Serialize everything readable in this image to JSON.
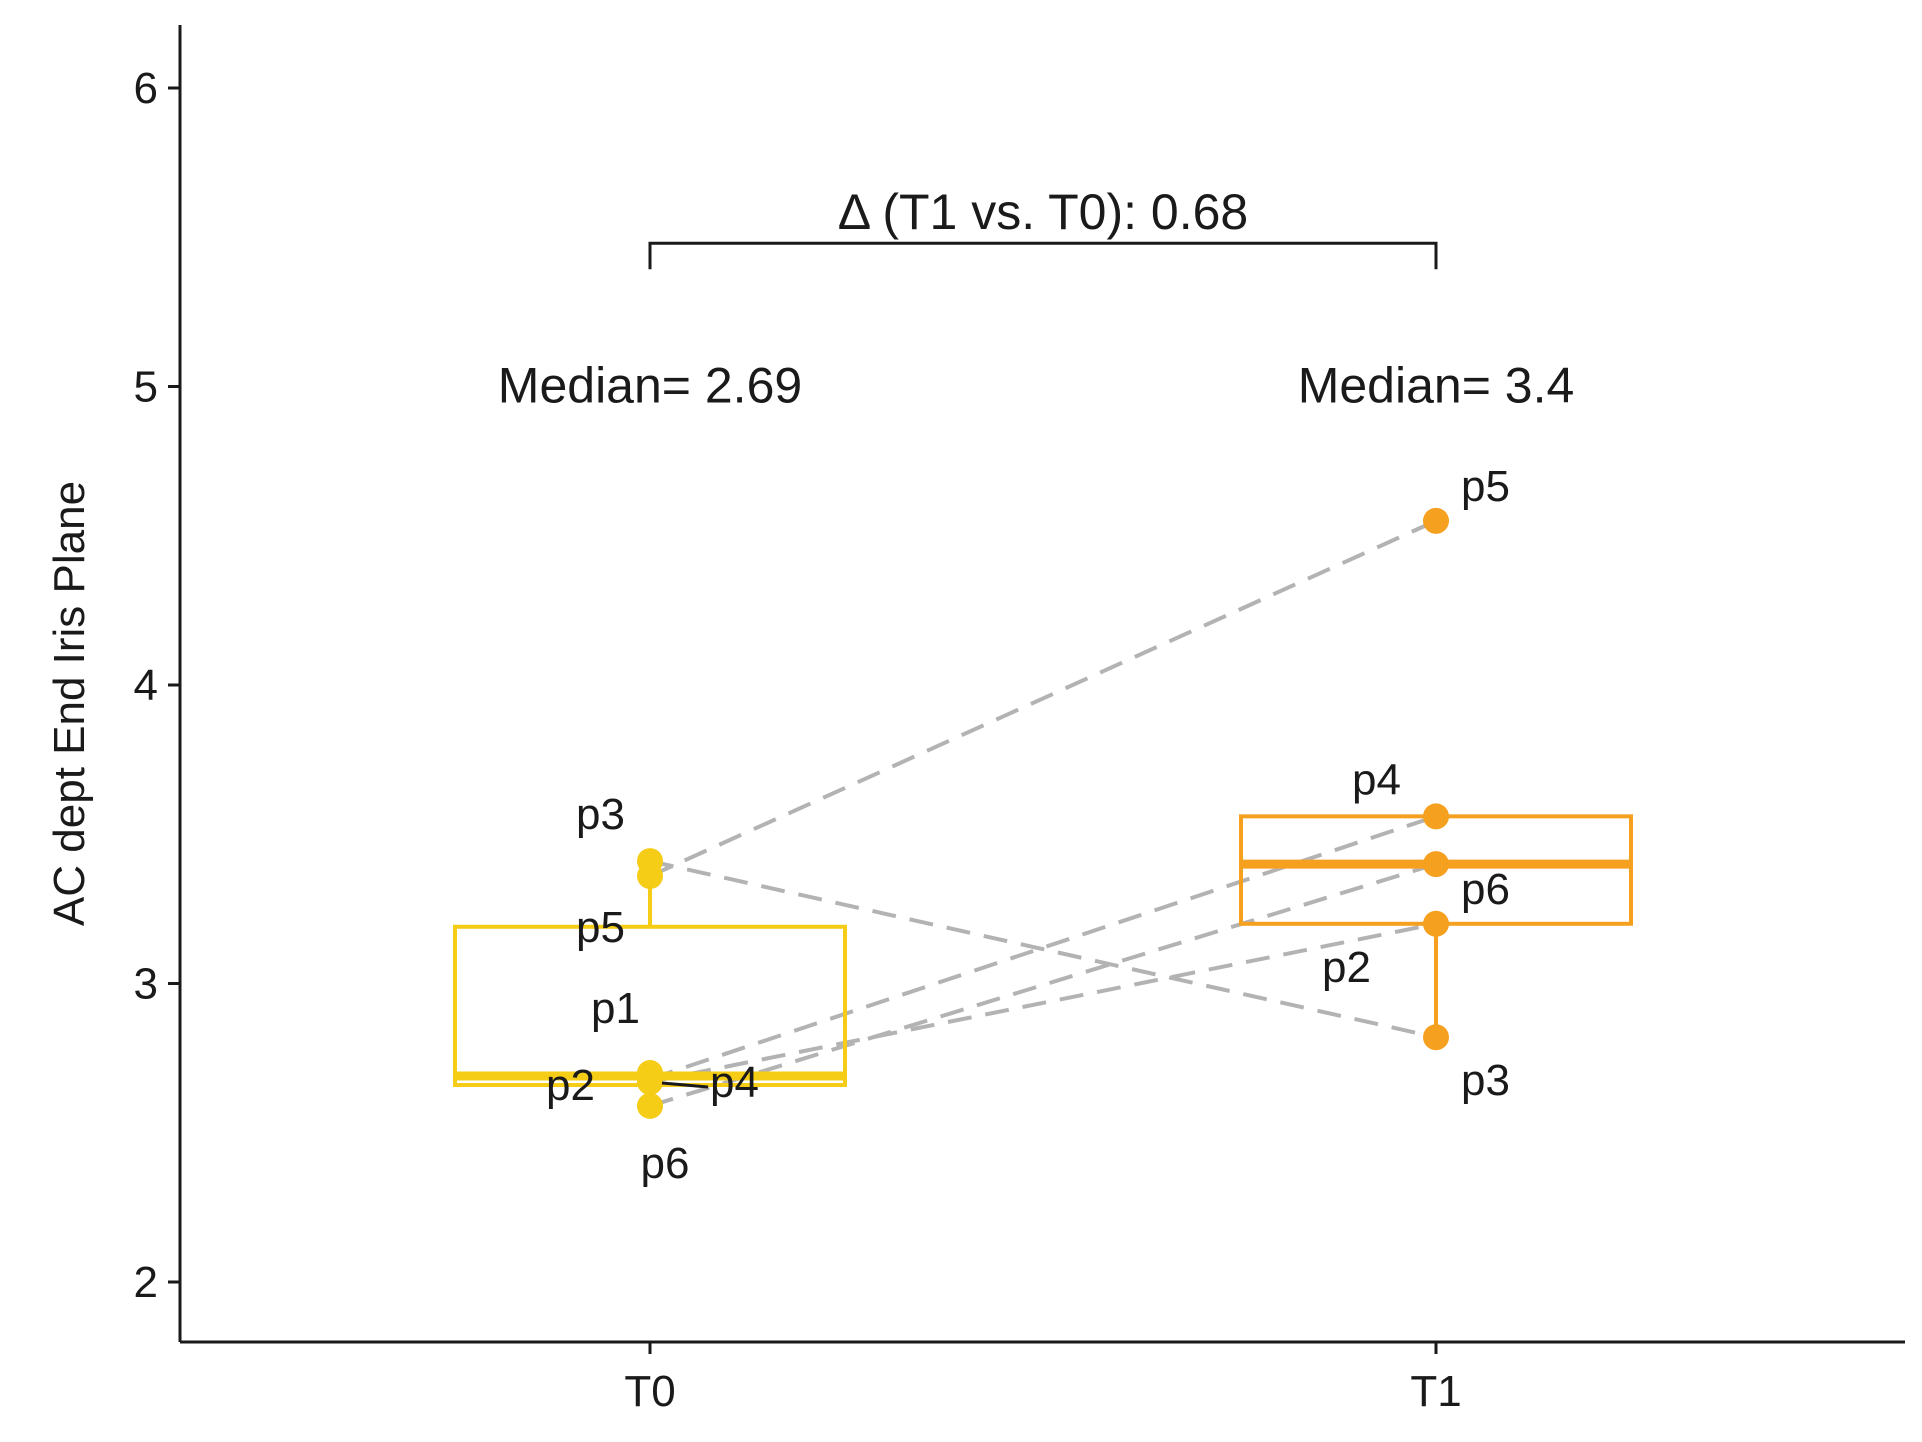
{
  "chart_data": {
    "type": "box",
    "ylabel": "AC dept End Iris Plane",
    "ylim": [
      1.9,
      6.2
    ],
    "yticks": [
      2,
      3,
      4,
      5,
      6
    ],
    "categories": [
      "T0",
      "T1"
    ],
    "grid": false,
    "legend": "none",
    "groups": [
      {
        "name": "T0",
        "color": "#F5CC16",
        "median_label": "Median= 2.69",
        "box": {
          "q1": 2.66,
          "median": 2.69,
          "q3": 3.19,
          "whisker_low": 2.59,
          "whisker_high": 3.41
        },
        "points": [
          {
            "label": "p1",
            "y": 2.7
          },
          {
            "label": "p2",
            "y": 2.67
          },
          {
            "label": "p3",
            "y": 3.41
          },
          {
            "label": "p4",
            "y": 2.68
          },
          {
            "label": "p5",
            "y": 3.36
          },
          {
            "label": "p6",
            "y": 2.59
          }
        ]
      },
      {
        "name": "T1",
        "color": "#F5A01E",
        "median_label": "Median= 3.4",
        "box": {
          "q1": 3.2,
          "median": 3.4,
          "q3": 3.56,
          "whisker_low": 2.82,
          "whisker_high": 3.56
        },
        "points": [
          {
            "label": "p2",
            "y": 3.2
          },
          {
            "label": "p3",
            "y": 2.82
          },
          {
            "label": "p4",
            "y": 3.56
          },
          {
            "label": "p5",
            "y": 4.55
          },
          {
            "label": "p6",
            "y": 3.4
          }
        ]
      }
    ],
    "comparison": {
      "label": "Δ (T1 vs. T0): 0.68",
      "y": 5.48
    },
    "pair_lines": [
      {
        "from": "p3",
        "to": "p3"
      },
      {
        "from": "p5",
        "to": "p5"
      },
      {
        "from": "p2",
        "to": "p2"
      },
      {
        "from": "p4",
        "to": "p4"
      },
      {
        "from": "p6",
        "to": "p6"
      }
    ],
    "colors": {
      "axis": "#1a1a1a",
      "pair_line": "#b3b3b3"
    }
  }
}
